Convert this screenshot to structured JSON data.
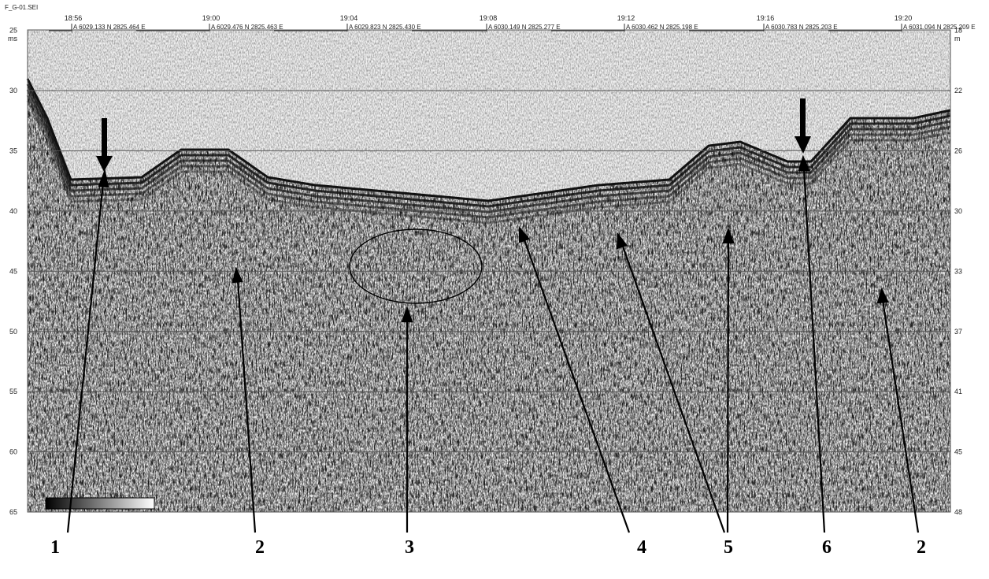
{
  "header": {
    "file": "F_G-01.SEI"
  },
  "times": [
    "18:56",
    "19:00",
    "19:04",
    "19:08",
    "19:12",
    "19:16",
    "19:20"
  ],
  "positions": [
    "A 6029.133 N  2825.464 E",
    "A 6029.476 N  2825.463 E",
    "A 6029.823 N  2825.430 E",
    "A 6030.149 N  2825.277 E",
    "A 6030.462 N  2825.198 E",
    "A 6030.783 N  2825.203 E",
    "A 6031.094 N  2825.209 E"
  ],
  "left_axis": {
    "unit": "ms",
    "ticks": [
      "25",
      "30",
      "35",
      "40",
      "45",
      "50",
      "55",
      "60",
      "65"
    ]
  },
  "right_axis": {
    "unit": "m",
    "ticks": [
      "18",
      "22",
      "26",
      "30",
      "33",
      "37",
      "41",
      "45",
      "48"
    ]
  },
  "labels": [
    "1",
    "2",
    "3",
    "4",
    "5",
    "6",
    "2"
  ]
}
